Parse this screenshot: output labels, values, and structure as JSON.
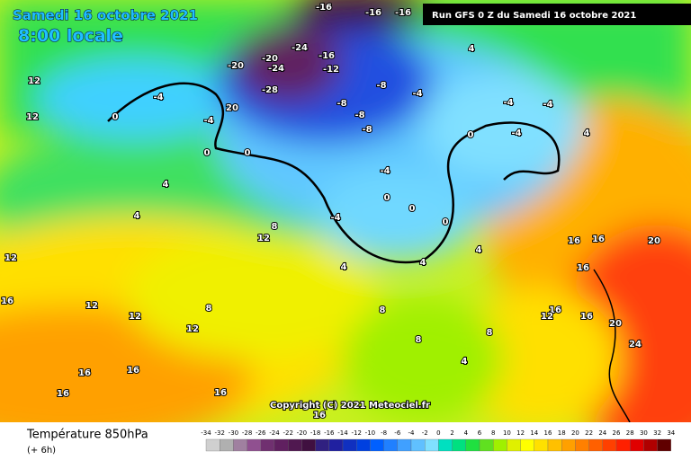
{
  "header": {
    "date": "Samedi 16 octobre 2021",
    "time": "8:00 locale",
    "run": "Run GFS 0 Z du Samedi 16 octobre 2021"
  },
  "map": {
    "copyright": "Copyright (C) 2021 Meteociel.fr",
    "contour_labels": [
      "-16",
      "-16",
      "-16",
      "-24",
      "-20",
      "-24",
      "-28",
      "-16",
      "-12",
      "-20",
      "20",
      "-8",
      "-4",
      "-8",
      "-8",
      "-8",
      "-4",
      "-4",
      "0",
      "12",
      "12",
      "0",
      "0",
      "4",
      "4",
      "-4",
      "-4",
      "-4",
      "0",
      "4",
      "4",
      "12",
      "8",
      "12",
      "16",
      "12",
      "12",
      "8",
      "12",
      "16",
      "16",
      "16",
      "16",
      "16",
      "4",
      "4",
      "8",
      "4",
      "16",
      "16",
      "20",
      "16",
      "16",
      "12",
      "16",
      "20",
      "24",
      "-4",
      "0",
      "0",
      "0",
      "-4",
      "4",
      "8",
      "8"
    ]
  },
  "legend": {
    "title": "Température 850hPa",
    "step": "(+ 6h)",
    "labels": [
      -34,
      -32,
      -30,
      -28,
      -26,
      -24,
      -22,
      -20,
      -18,
      -16,
      -14,
      -12,
      -10,
      -8,
      -6,
      -4,
      -2,
      0,
      2,
      4,
      6,
      8,
      10,
      12,
      14,
      16,
      18,
      20,
      22,
      24,
      26,
      28,
      30,
      32,
      34
    ],
    "colors": [
      "#d0d0d0",
      "#b0b0b0",
      "#a080a0",
      "#905090",
      "#703070",
      "#602060",
      "#501850",
      "#401040",
      "#302080",
      "#2020a0",
      "#1030c0",
      "#0040e0",
      "#0060ff",
      "#2080ff",
      "#40a0ff",
      "#60c0ff",
      "#80e0ff",
      "#00e0c0",
      "#00e080",
      "#20e040",
      "#60e020",
      "#a0f000",
      "#e0f000",
      "#ffff00",
      "#ffe000",
      "#ffc000",
      "#ffa000",
      "#ff8000",
      "#ff6000",
      "#ff4000",
      "#ff2000",
      "#e00000",
      "#b00000",
      "#600000"
    ]
  }
}
